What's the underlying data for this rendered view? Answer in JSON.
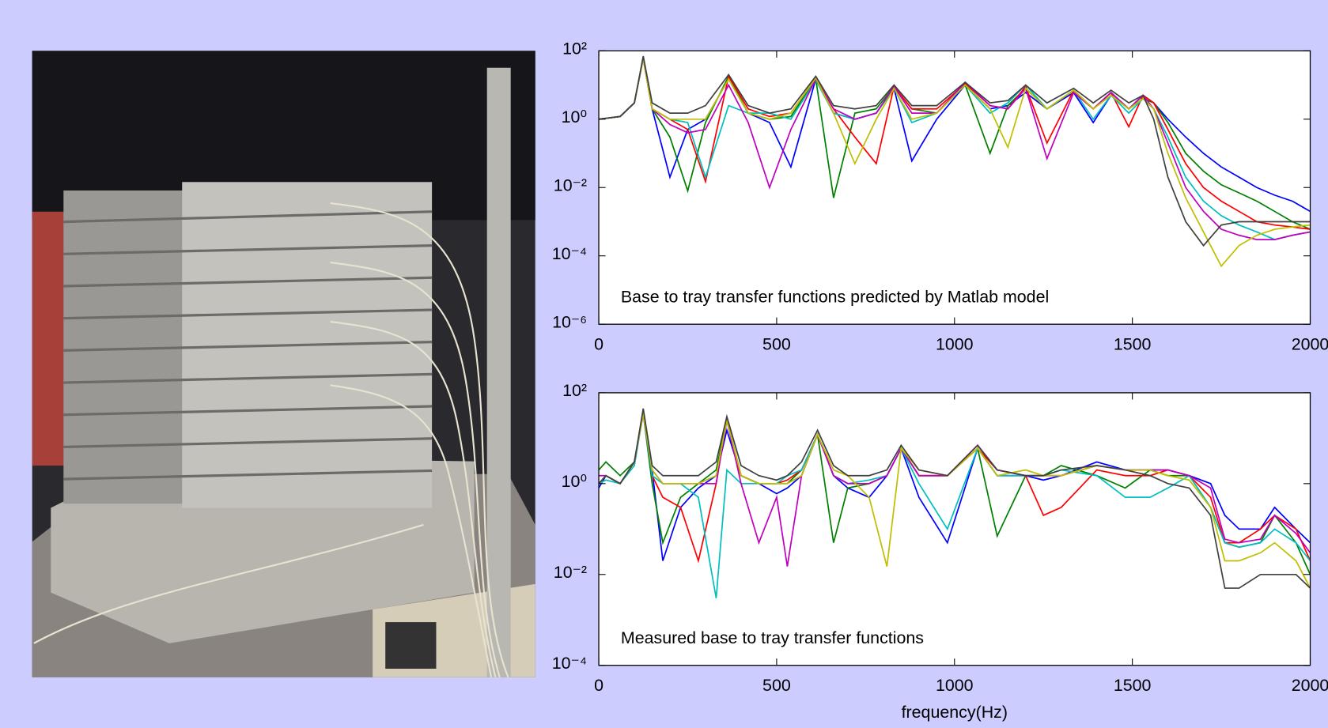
{
  "chart_data": [
    {
      "type": "line",
      "log_y": true,
      "annotation": "Base to tray transfer functions predicted by Matlab model",
      "x": [
        0,
        60,
        100,
        125,
        150,
        200,
        250,
        300,
        365,
        420,
        480,
        540,
        610,
        660,
        720,
        780,
        830,
        880,
        950,
        1030,
        1100,
        1150,
        1200,
        1260,
        1335,
        1390,
        1440,
        1490,
        1530,
        1560,
        1600,
        1650,
        1700,
        1750,
        1800,
        1850,
        1900,
        1950,
        2000
      ],
      "xlim": [
        0,
        2000
      ],
      "xticks": [
        0,
        500,
        1000,
        1500,
        2000
      ],
      "ylim": [
        1e-06,
        100
      ],
      "yticks": [
        {
          "value": 100,
          "label": "10²"
        },
        {
          "value": 1,
          "label": "10⁰"
        },
        {
          "value": 0.01,
          "label": "10⁻²"
        },
        {
          "value": 0.0001,
          "label": "10⁻⁴"
        },
        {
          "value": 1e-06,
          "label": "10⁻⁶"
        }
      ],
      "series": [
        {
          "color": "#0000ff",
          "values": [
            1,
            1.2,
            3,
            60,
            2,
            0.02,
            0.5,
            1,
            15,
            1.5,
            0.8,
            0.04,
            15,
            1.5,
            1,
            1.5,
            8,
            0.06,
            1,
            10,
            2,
            2.5,
            6,
            2,
            6,
            0.8,
            5,
            2,
            5,
            3,
            1,
            0.3,
            0.1,
            0.04,
            0.02,
            0.01,
            0.006,
            0.004,
            0.002
          ]
        },
        {
          "color": "#008000",
          "values": [
            1,
            1.2,
            3,
            60,
            2,
            0.3,
            0.008,
            0.8,
            18,
            1.5,
            1,
            1.2,
            15,
            0.005,
            1.5,
            2,
            9,
            2,
            1.5,
            10,
            0.1,
            2.5,
            8,
            2,
            7,
            2,
            6,
            2,
            4,
            3,
            0.8,
            0.1,
            0.03,
            0.012,
            0.007,
            0.004,
            0.002,
            0.001,
            0.0006
          ]
        },
        {
          "color": "#ff0000",
          "values": [
            1,
            1.2,
            3,
            60,
            2,
            1,
            0.5,
            0.015,
            18,
            2,
            1.2,
            1.5,
            16,
            2,
            0.3,
            0.05,
            9,
            2,
            2,
            11,
            2.5,
            2,
            9,
            0.2,
            7,
            2,
            6,
            0.6,
            5,
            3,
            0.5,
            0.05,
            0.01,
            0.004,
            0.002,
            0.001,
            0.0008,
            0.0007,
            0.0006
          ]
        },
        {
          "color": "#00bfbf",
          "values": [
            1,
            1.2,
            3,
            60,
            2,
            1,
            0.8,
            0.02,
            2.5,
            1.5,
            1.5,
            1,
            14,
            1.5,
            1,
            1.5,
            8,
            0.8,
            1.5,
            10,
            1.5,
            3,
            10,
            2,
            7,
            1,
            5,
            1.5,
            4,
            2,
            0.3,
            0.02,
            0.004,
            0.0015,
            0.0008,
            0.0005,
            0.0003,
            0.0004,
            0.0005
          ]
        },
        {
          "color": "#bf00bf",
          "values": [
            1,
            1.2,
            3,
            60,
            2,
            0.7,
            0.4,
            0.5,
            10,
            0.8,
            0.01,
            0.5,
            15,
            2,
            1,
            1.5,
            9,
            1.5,
            1.5,
            12,
            2.5,
            2,
            8,
            0.07,
            6,
            2,
            6,
            2,
            5,
            2,
            0.2,
            0.01,
            0.002,
            0.0006,
            0.0004,
            0.0003,
            0.0003,
            0.0004,
            0.0005
          ]
        },
        {
          "color": "#bfbf00",
          "values": [
            1,
            1.2,
            3,
            60,
            2,
            1,
            1,
            1,
            15,
            1.5,
            1,
            1.5,
            16,
            1.5,
            0.05,
            1,
            8,
            1,
            1.5,
            10,
            2,
            0.15,
            8,
            2,
            7,
            2,
            5,
            2,
            4,
            2,
            0.1,
            0.005,
            0.0005,
            5e-05,
            0.0002,
            0.0004,
            0.0006,
            0.0007,
            0.0008
          ]
        },
        {
          "color": "#404040",
          "values": [
            1,
            1.2,
            3,
            70,
            3,
            1.5,
            1.5,
            2.5,
            20,
            2.5,
            1.5,
            2,
            18,
            2.5,
            2,
            2.5,
            10,
            2.5,
            2.5,
            12,
            3,
            3.5,
            10,
            3,
            8,
            3,
            7,
            3,
            5,
            1,
            0.02,
            0.001,
            0.0002,
            0.0008,
            0.001,
            0.001,
            0.001,
            0.001,
            0.001
          ]
        }
      ]
    },
    {
      "type": "line",
      "log_y": true,
      "annotation": "Measured base to tray transfer functions",
      "x_label": "frequency(Hz)",
      "x": [
        0,
        20,
        60,
        100,
        125,
        150,
        180,
        230,
        280,
        330,
        360,
        400,
        450,
        500,
        530,
        570,
        615,
        660,
        700,
        760,
        810,
        850,
        900,
        980,
        1065,
        1120,
        1200,
        1250,
        1300,
        1400,
        1480,
        1550,
        1600,
        1660,
        1720,
        1760,
        1800,
        1860,
        1900,
        1960,
        2000
      ],
      "xlim": [
        0,
        2000
      ],
      "xticks": [
        0,
        500,
        1000,
        1500,
        2000
      ],
      "ylim": [
        0.0001,
        100
      ],
      "yticks": [
        {
          "value": 100,
          "label": "10²"
        },
        {
          "value": 1,
          "label": "10⁰"
        },
        {
          "value": 0.01,
          "label": "10⁻²"
        },
        {
          "value": 0.0001,
          "label": "10⁻⁴"
        }
      ],
      "series": [
        {
          "color": "#0000ff",
          "values": [
            0.8,
            1.5,
            1,
            3,
            35,
            2,
            0.02,
            0.3,
            0.8,
            1.5,
            15,
            1.5,
            1,
            0.6,
            0.8,
            1.5,
            12,
            1.5,
            0.8,
            0.5,
            1.5,
            6,
            0.5,
            0.05,
            6,
            1.5,
            1.5,
            1.2,
            1.5,
            3,
            2,
            2,
            2,
            1.5,
            1,
            0.2,
            0.1,
            0.1,
            0.3,
            0.1,
            0.05
          ]
        },
        {
          "color": "#008000",
          "values": [
            2,
            3,
            1.5,
            3,
            35,
            1,
            0.05,
            0.5,
            1,
            2,
            25,
            1.5,
            1,
            1,
            1,
            2,
            12,
            0.05,
            0.8,
            1,
            1.5,
            6,
            1.5,
            1.5,
            6,
            0.07,
            1.5,
            1.5,
            2.5,
            1.5,
            0.8,
            2,
            1.5,
            1.5,
            0.3,
            0.05,
            0.04,
            0.05,
            0.2,
            0.05,
            0.01
          ]
        },
        {
          "color": "#ff0000",
          "values": [
            1,
            1.5,
            1,
            3,
            35,
            1.5,
            0.5,
            0.3,
            0.02,
            1,
            25,
            1.5,
            1,
            1,
            1.2,
            2,
            12,
            1.5,
            1,
            1,
            1.5,
            6,
            1.5,
            1.5,
            6,
            2,
            1.5,
            0.2,
            0.3,
            2,
            1.5,
            1.5,
            2,
            1.5,
            0.5,
            0.05,
            0.05,
            0.1,
            0.2,
            0.1,
            0.02
          ]
        },
        {
          "color": "#00bfbf",
          "values": [
            1,
            1.2,
            1,
            2.5,
            35,
            1.5,
            1,
            1,
            0.5,
            0.003,
            2,
            1,
            1,
            1,
            1.5,
            2,
            12,
            1.5,
            1,
            1.2,
            1.5,
            6,
            1,
            0.1,
            6,
            1.5,
            1.5,
            1.5,
            2,
            1.5,
            0.5,
            0.5,
            0.8,
            1.5,
            0.3,
            0.05,
            0.04,
            0.05,
            0.1,
            0.05,
            0.02
          ]
        },
        {
          "color": "#bf00bf",
          "values": [
            1.5,
            1.5,
            1,
            3,
            35,
            2,
            1,
            1,
            1,
            1,
            25,
            1,
            0.05,
            0.5,
            0.015,
            1.5,
            12,
            1.5,
            1,
            1,
            1.5,
            6,
            1.5,
            1.5,
            7,
            2,
            1.5,
            1.5,
            1.5,
            2.5,
            2,
            2,
            2,
            1.5,
            0.8,
            0.06,
            0.05,
            0.06,
            0.2,
            0.08,
            0.03
          ]
        },
        {
          "color": "#bfbf00",
          "values": [
            1,
            1.5,
            1,
            3,
            35,
            2,
            1,
            1,
            1,
            1.5,
            25,
            1.5,
            1,
            1,
            1,
            1.5,
            12,
            2,
            1.5,
            0.5,
            0.015,
            6,
            2,
            1.5,
            6,
            1.5,
            2,
            1.5,
            1.5,
            2.5,
            2,
            2,
            1.5,
            1.2,
            0.3,
            0.02,
            0.02,
            0.03,
            0.05,
            0.02,
            0.005
          ]
        },
        {
          "color": "#404040",
          "values": [
            1,
            1.5,
            1,
            3,
            45,
            2.5,
            1.5,
            1.5,
            1.5,
            3,
            30,
            2.5,
            1.5,
            1.2,
            1.5,
            3,
            15,
            2.5,
            1.5,
            1.5,
            2,
            7,
            2,
            1.5,
            7,
            2,
            1.5,
            1.5,
            2,
            2.5,
            2,
            1.5,
            1,
            0.8,
            0.2,
            0.005,
            0.005,
            0.01,
            0.01,
            0.01,
            0.005
          ]
        }
      ]
    }
  ]
}
